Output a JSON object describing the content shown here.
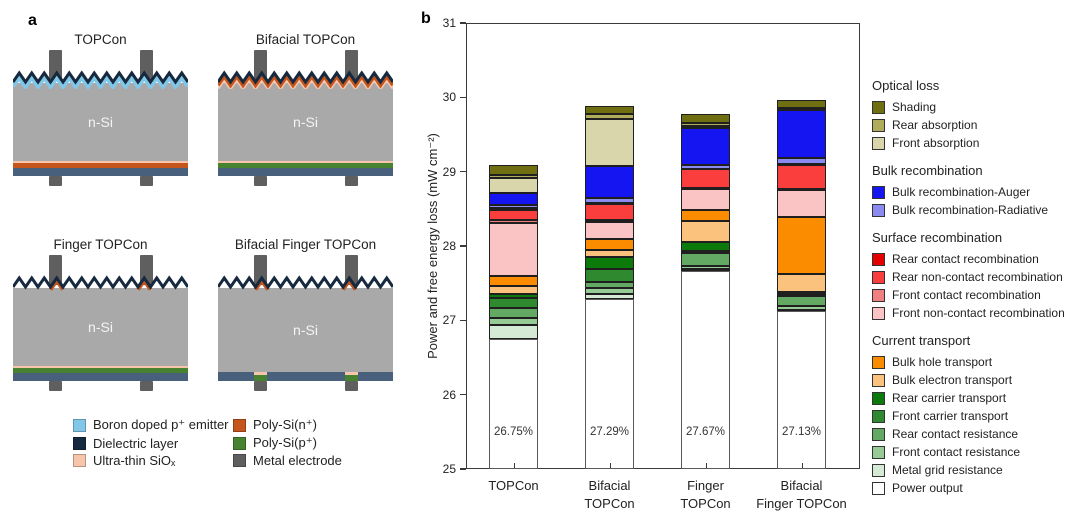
{
  "panel_a": {
    "label": "a",
    "materials": {
      "emitter": "#82C7E8",
      "dielectric": "#16293E",
      "rear_dielectric": "#48607B",
      "siox": "#F6C5AC",
      "poly_n": "#C4551D",
      "poly_p": "#478231",
      "metal": "#5F5F5F",
      "body": "#A9A9A9"
    },
    "cells": [
      {
        "title": "TOPCon",
        "body_label": "n-Si",
        "front": "emitter",
        "rear_layers": [
          "siox",
          "poly_n"
        ],
        "rear_localized": false
      },
      {
        "title": "Bifacial TOPCon",
        "body_label": "n-Si",
        "front": "poly_n_full",
        "rear_layers": [
          "siox",
          "poly_p"
        ],
        "rear_localized": false
      },
      {
        "title": "Finger TOPCon",
        "body_label": "n-Si",
        "front": "poly_n_finger",
        "rear_layers": [
          "siox",
          "poly_p"
        ],
        "rear_localized": false
      },
      {
        "title": "Bifacial Finger TOPCon",
        "body_label": "n-Si",
        "front": "poly_n_finger",
        "rear_layers": [
          "siox",
          "poly_p"
        ],
        "rear_localized": true
      }
    ],
    "legend": {
      "col1": [
        {
          "label": "Boron doped p⁺ emitter",
          "material": "emitter"
        },
        {
          "label": "Dielectric layer",
          "material": "dielectric"
        },
        {
          "label": "Ultra-thin SiOₓ",
          "material": "siox"
        }
      ],
      "col2": [
        {
          "label": "Poly-Si(n⁺)",
          "material": "poly_n"
        },
        {
          "label": "Poly-Si(p⁺)",
          "material": "poly_p"
        },
        {
          "label": "Metal electrode",
          "material": "metal"
        }
      ]
    }
  },
  "panel_b": {
    "label": "b",
    "ylabel": "Power and free energy loss (mW cm⁻²)",
    "xtick_lines": [
      [
        "TOPCon"
      ],
      [
        "Bifacial",
        "TOPCon"
      ],
      [
        "Finger",
        "TOPCon"
      ],
      [
        "Bifacial",
        "Finger TOPCon"
      ]
    ],
    "legend_groups": [
      {
        "header": "Optical loss",
        "items": [
          "Shading",
          "Rear absorption",
          "Front absorption"
        ]
      },
      {
        "header": "Bulk recombination",
        "items": [
          "Bulk recombination-Auger",
          "Bulk recombination-Radiative"
        ]
      },
      {
        "header": "Surface recombination",
        "items": [
          "Rear contact recombination",
          "Rear non-contact recombination",
          "Front contact recombination",
          "Front non-contact recombination"
        ]
      },
      {
        "header": "Current transport",
        "items": [
          "Bulk hole transport",
          "Bulk electron transport",
          "Rear carrier transport",
          "Front carrier transport",
          "Rear contact resistance",
          "Front contact resistance",
          "Metal grid resistance",
          "Power output"
        ]
      }
    ]
  },
  "chart_data": {
    "type": "bar",
    "subtype": "stacked",
    "title": "",
    "xlabel": "",
    "ylabel": "Power and free energy loss (mW cm⁻²)",
    "ylim": [
      25,
      31
    ],
    "yticks": [
      25,
      26,
      27,
      28,
      29,
      30,
      31
    ],
    "grid": false,
    "legend_position": "right",
    "categories": [
      "TOPCon",
      "Bifacial TOPCon",
      "Finger TOPCon",
      "Bifacial Finger TOPCon"
    ],
    "power_output": {
      "name": "Power output",
      "color": "#FFFFFF",
      "values": [
        26.75,
        27.29,
        27.67,
        27.13
      ],
      "labels": [
        "26.75%",
        "27.29%",
        "27.67%",
        "27.13%"
      ]
    },
    "loss_series_bottom_to_top": [
      {
        "name": "Metal grid resistance",
        "color": "#D5EAD5",
        "values": [
          0.19,
          0.07,
          0.02,
          0.01
        ]
      },
      {
        "name": "Front contact resistance",
        "color": "#96CB96",
        "values": [
          0.09,
          0.08,
          0.04,
          0.05
        ]
      },
      {
        "name": "Rear contact resistance",
        "color": "#63A863",
        "values": [
          0.14,
          0.07,
          0.18,
          0.14
        ]
      },
      {
        "name": "Front carrier transport",
        "color": "#2F8A2F",
        "values": [
          0.13,
          0.18,
          0.02,
          0.02
        ]
      },
      {
        "name": "Rear carrier transport",
        "color": "#0B7A0B",
        "values": [
          0.06,
          0.16,
          0.12,
          0.03
        ]
      },
      {
        "name": "Bulk electron transport",
        "color": "#FBC27E",
        "values": [
          0.1,
          0.09,
          0.28,
          0.25
        ]
      },
      {
        "name": "Bulk hole transport",
        "color": "#FB8C00",
        "values": [
          0.13,
          0.15,
          0.16,
          0.76
        ]
      },
      {
        "name": "Front non-contact recombination",
        "color": "#FBC4C4",
        "values": [
          0.72,
          0.23,
          0.28,
          0.37
        ]
      },
      {
        "name": "Front contact recombination",
        "color": "#F08080",
        "values": [
          0.04,
          0.03,
          0.01,
          0.01
        ]
      },
      {
        "name": "Rear non-contact recombination",
        "color": "#FA3E3E",
        "values": [
          0.14,
          0.22,
          0.25,
          0.32
        ]
      },
      {
        "name": "Rear contact recombination",
        "color": "#E60000",
        "values": [
          0.015,
          0.01,
          0.01,
          0.01
        ]
      },
      {
        "name": "Bulk recombination-Radiative",
        "color": "#8A8AF0",
        "values": [
          0.045,
          0.07,
          0.05,
          0.08
        ]
      },
      {
        "name": "Bulk recombination-Auger",
        "color": "#1515F2",
        "values": [
          0.16,
          0.42,
          0.5,
          0.65
        ]
      },
      {
        "name": "Front absorption",
        "color": "#D9D6AC",
        "values": [
          0.2,
          0.64,
          0.03,
          0.01
        ]
      },
      {
        "name": "Rear absorption",
        "color": "#AFAC5C",
        "values": [
          0.05,
          0.06,
          0.04,
          0.01
        ]
      },
      {
        "name": "Shading",
        "color": "#6F6F12",
        "values": [
          0.13,
          0.12,
          0.12,
          0.12
        ]
      }
    ],
    "bar_totals": [
      29.09,
      29.89,
      29.78,
      29.97
    ]
  }
}
